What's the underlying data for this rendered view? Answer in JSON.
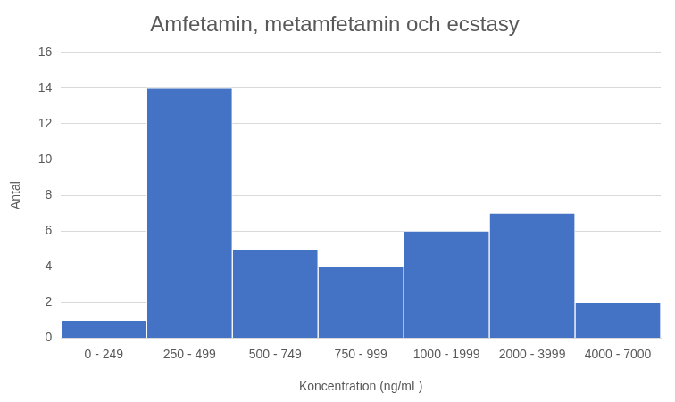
{
  "chart_data": {
    "type": "bar",
    "title": "Amfetamin, metamfetamin och ecstasy",
    "x_label": "Koncentration (ng/mL)",
    "y_label": "Antal",
    "categories": [
      "0 - 249",
      "250 - 499",
      "500 - 749",
      "750 - 999",
      "1000 - 1999",
      "2000 - 3999",
      "4000 - 7000"
    ],
    "values": [
      1,
      14,
      5,
      4,
      6,
      7,
      2
    ],
    "color": "#4472c4",
    "ylim": [
      0,
      16
    ],
    "yticks": [
      0,
      2,
      4,
      6,
      8,
      10,
      12,
      14,
      16
    ],
    "grid": true
  }
}
